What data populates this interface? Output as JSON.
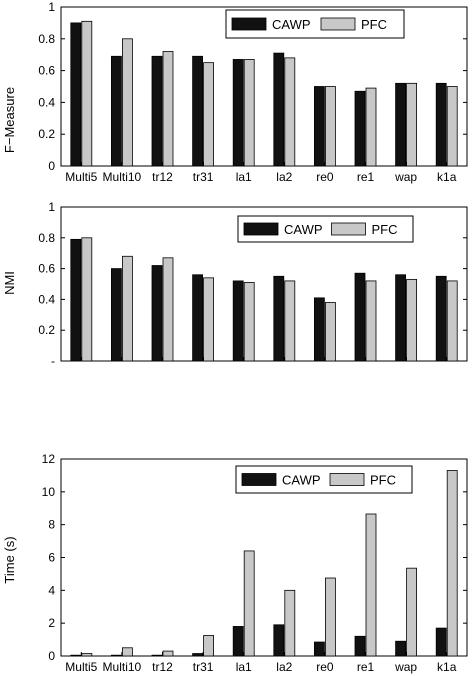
{
  "chart_data": [
    {
      "type": "bar",
      "categories": [
        "Multi5",
        "Multi10",
        "tr12",
        "tr31",
        "la1",
        "la2",
        "re0",
        "re1",
        "wap",
        "k1a"
      ],
      "series": [
        {
          "name": "CAWP",
          "values": [
            0.9,
            0.69,
            0.69,
            0.69,
            0.67,
            0.71,
            0.5,
            0.47,
            0.52,
            0.52
          ]
        },
        {
          "name": "PFC",
          "values": [
            0.91,
            0.8,
            0.72,
            0.65,
            0.67,
            0.68,
            0.5,
            0.49,
            0.52,
            0.5
          ]
        }
      ],
      "xlabel": "",
      "ylabel": "F−Measure",
      "ylim": [
        0,
        1
      ],
      "yticks": [
        "0",
        "0.2",
        "0.4",
        "0.6",
        "0.8",
        "1"
      ],
      "legend_position": "top-right",
      "grid": false
    },
    {
      "type": "bar",
      "categories": [
        "Multi5",
        "Multi10",
        "tr12",
        "tr31",
        "la1",
        "la2",
        "re0",
        "re1",
        "wap",
        "k1a"
      ],
      "series": [
        {
          "name": "CAWP",
          "values": [
            0.79,
            0.6,
            0.62,
            0.56,
            0.52,
            0.55,
            0.41,
            0.57,
            0.56,
            0.55
          ]
        },
        {
          "name": "PFC",
          "values": [
            0.8,
            0.68,
            0.67,
            0.54,
            0.51,
            0.52,
            0.38,
            0.52,
            0.53,
            0.52
          ]
        }
      ],
      "xlabel": "",
      "ylabel": "NMI",
      "ylim": [
        0,
        1
      ],
      "yticks": [
        "-",
        "0.2",
        "0.4",
        "0.6",
        "0.8",
        "1"
      ],
      "legend_position": "top-right",
      "grid": false
    },
    {
      "type": "bar",
      "categories": [
        "Multi5",
        "Multi10",
        "tr12",
        "tr31",
        "la1",
        "la2",
        "re0",
        "re1",
        "wap",
        "k1a"
      ],
      "series": [
        {
          "name": "CAWP",
          "values": [
            0.05,
            0.05,
            0.05,
            0.15,
            1.8,
            1.9,
            0.85,
            1.2,
            0.9,
            1.7
          ]
        },
        {
          "name": "PFC",
          "values": [
            0.15,
            0.5,
            0.3,
            1.25,
            6.4,
            4.0,
            4.75,
            8.65,
            5.35,
            11.3
          ]
        }
      ],
      "xlabel": "",
      "ylabel": "Time (s)",
      "ylim": [
        0,
        12
      ],
      "yticks": [
        "0",
        "2",
        "4",
        "6",
        "8",
        "10",
        "12"
      ],
      "legend_position": "top-right",
      "grid": false
    }
  ],
  "colors": {
    "CAWP": "#111111",
    "PFC": "#c8c8c8"
  }
}
